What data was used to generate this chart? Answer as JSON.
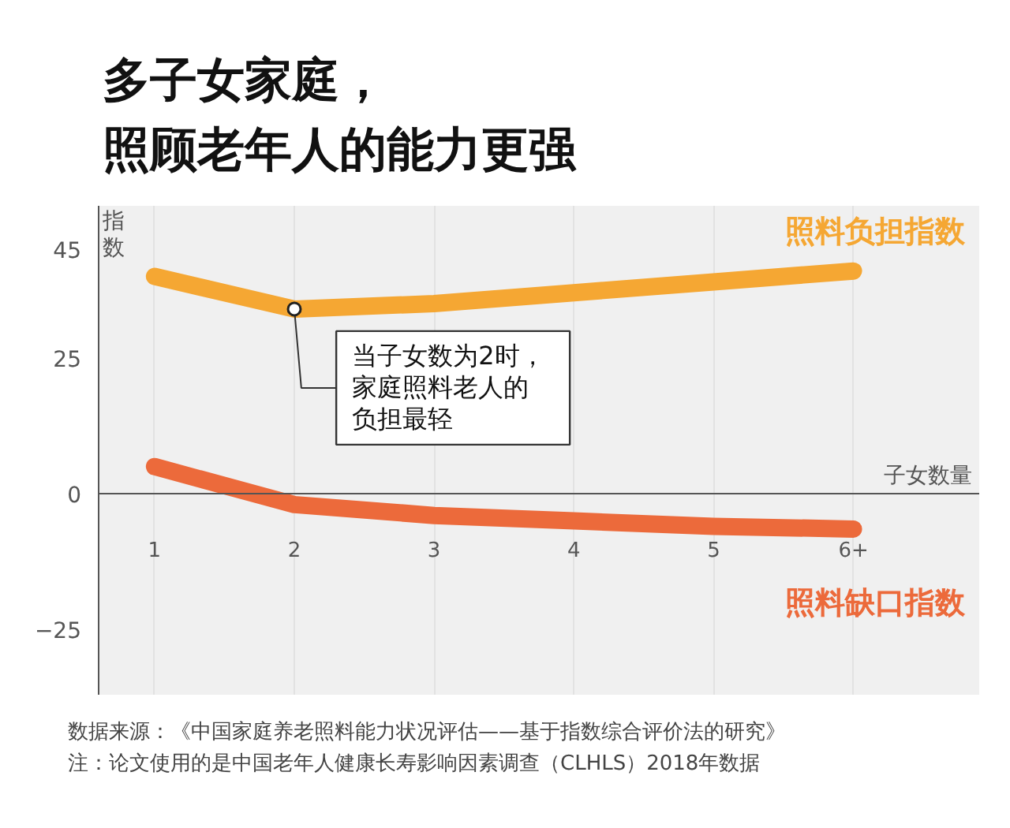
{
  "chart_data": {
    "type": "line",
    "title": "多子女家庭，",
    "subtitle": "照顾老年人的能力更强",
    "xlabel": "子女数量",
    "ylabel": "指数",
    "categories": [
      "1",
      "2",
      "3",
      "4",
      "5",
      "6+"
    ],
    "series": [
      {
        "name": "照料负担指数",
        "color": "#f5a733",
        "values": [
          40,
          34,
          35,
          37,
          39,
          41
        ]
      },
      {
        "name": "照料缺口指数",
        "color": "#ec6a3b",
        "values": [
          5,
          -2,
          -4,
          -5,
          -6,
          -6.5
        ]
      }
    ],
    "ylim": [
      -37,
      53
    ],
    "yticks": [
      45,
      25,
      0,
      -25
    ],
    "grid": "x",
    "line_style": "solid",
    "annotations": [
      {
        "text": "当子女数为2时，家庭照料老人的负担最轻",
        "x": "2",
        "y": 34
      },
      "数据来源：《中国家庭养老照料能力状况评估——基于指数综合评价法的研究》",
      "注：论文使用的是中国老年人健康长寿影响因素调查（CLHLS）2018年数据"
    ]
  }
}
